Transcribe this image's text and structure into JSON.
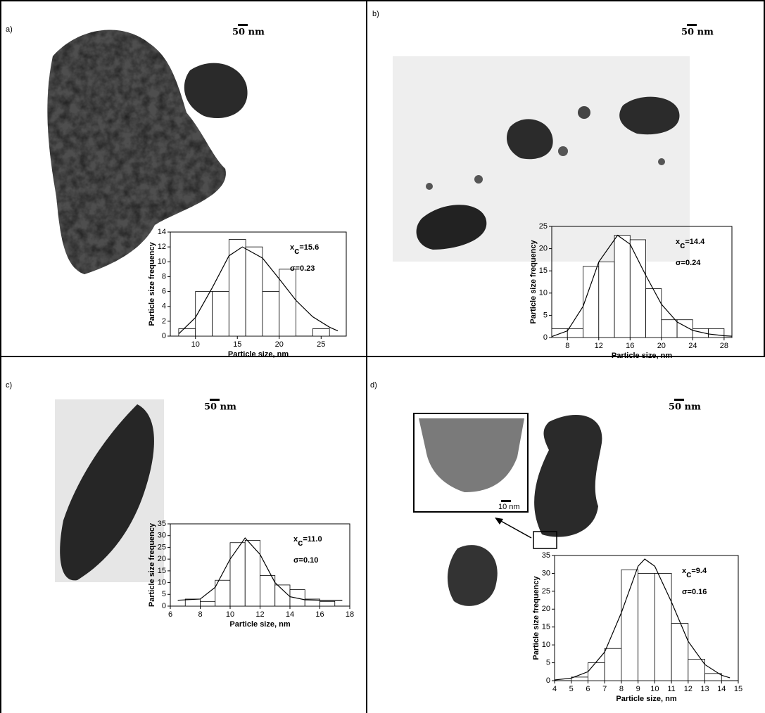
{
  "chart_data": [
    {
      "type": "histogram",
      "panel_label": "a)",
      "scale_bar_label": "50 nm",
      "xlabel": "Particle size, nm",
      "ylabel": "Particle size frequency",
      "bins": [
        8,
        10,
        12,
        14,
        16,
        18,
        20,
        22,
        24,
        26
      ],
      "values": [
        1,
        6,
        6,
        13,
        12,
        6,
        9,
        0,
        1
      ],
      "color": "#ffffff",
      "fit": {
        "x": [
          8,
          10,
          12,
          14,
          15.6,
          18,
          20,
          22,
          24,
          26,
          27
        ],
        "values": [
          0.3,
          2.5,
          6.5,
          10.8,
          12,
          10.5,
          7.7,
          4.8,
          2.6,
          1.2,
          0.7
        ]
      },
      "mean_label": [
        "x",
        "c",
        "=15.6"
      ],
      "sigma_label": "σ=0.23",
      "xlim": [
        7,
        28
      ],
      "ylim": [
        0,
        14
      ],
      "xticks": [
        10,
        15,
        20,
        25
      ],
      "yticks": [
        0,
        2,
        4,
        6,
        8,
        10,
        12,
        14
      ]
    },
    {
      "type": "histogram",
      "panel_label": "b)",
      "scale_bar_label": "50 nm",
      "xlabel": "Particle size, nm",
      "ylabel": "Particle size frequency",
      "bins": [
        6,
        8,
        10,
        12,
        14,
        16,
        18,
        20,
        22,
        24,
        26,
        28
      ],
      "values": [
        2,
        2,
        16,
        17,
        23,
        22,
        11,
        4,
        4,
        2,
        2
      ],
      "color": "#ffffff",
      "fit": {
        "x": [
          6,
          8,
          10,
          12,
          14.4,
          16,
          18,
          20,
          22,
          24,
          26,
          28,
          29
        ],
        "values": [
          0.2,
          1.5,
          7,
          17,
          23,
          21,
          14,
          7.5,
          3.5,
          1.6,
          0.8,
          0.4,
          0.3
        ]
      },
      "mean_label": [
        "x",
        "c",
        "=14.4"
      ],
      "sigma_label": "σ=0.24",
      "xlim": [
        6,
        29
      ],
      "ylim": [
        0,
        25
      ],
      "xticks": [
        8,
        12,
        16,
        20,
        24,
        28
      ],
      "yticks": [
        0,
        5,
        10,
        15,
        20,
        25
      ]
    },
    {
      "type": "histogram",
      "panel_label": "c)",
      "scale_bar_label": "50 nm",
      "xlabel": "Particle size, nm",
      "ylabel": "Particle size frequency",
      "bins": [
        7,
        8,
        9,
        10,
        11,
        12,
        13,
        14,
        15,
        16,
        17
      ],
      "values": [
        3,
        2,
        11,
        27,
        28,
        13,
        9,
        7,
        3,
        2
      ],
      "color": "#ffffff",
      "fit": {
        "x": [
          6.5,
          8,
          9,
          10,
          11,
          12,
          13,
          14,
          15,
          16,
          17.5
        ],
        "values": [
          2.5,
          3,
          8,
          20,
          29,
          22,
          10,
          4,
          2.7,
          2.5,
          2.5
        ]
      },
      "mean_label": [
        "x",
        "c",
        "=11.0"
      ],
      "sigma_label": "σ=0.10",
      "xlim": [
        6,
        18
      ],
      "ylim": [
        0,
        35
      ],
      "xticks": [
        6,
        8,
        10,
        12,
        14,
        16,
        18
      ],
      "yticks": [
        0,
        5,
        10,
        15,
        20,
        25,
        30,
        35
      ]
    },
    {
      "type": "histogram",
      "panel_label": "d)",
      "scale_bar_label": "50 nm",
      "inset_scale_label": "10 nm",
      "xlabel": "Particle size, nm",
      "ylabel": "Particle size frequency",
      "bins": [
        5,
        6,
        7,
        8,
        9,
        10,
        11,
        12,
        13,
        14
      ],
      "values": [
        1,
        5,
        9,
        31,
        30,
        30,
        16,
        6,
        2
      ],
      "color": "#ffffff",
      "fit": {
        "x": [
          4,
          5,
          6,
          7,
          8,
          9,
          9.4,
          10,
          11,
          12,
          13,
          14,
          14.5
        ],
        "values": [
          0.2,
          0.7,
          2.5,
          8,
          19,
          32,
          34,
          32,
          22,
          11,
          4.5,
          1.5,
          0.8
        ]
      },
      "mean_label": [
        "x",
        "c",
        "=9.4"
      ],
      "sigma_label": "σ=0.16",
      "xlim": [
        4,
        15
      ],
      "ylim": [
        0,
        35
      ],
      "xticks": [
        4,
        5,
        6,
        7,
        8,
        9,
        10,
        11,
        12,
        13,
        14,
        15
      ],
      "yticks": [
        0,
        5,
        10,
        15,
        20,
        25,
        30,
        35
      ]
    }
  ]
}
